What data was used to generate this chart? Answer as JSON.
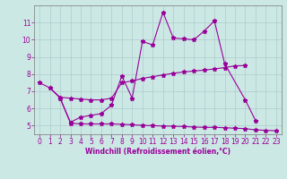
{
  "xlabel": "Windchill (Refroidissement éolien,°C)",
  "background_color": "#cce8e4",
  "grid_color": "#aacccc",
  "line_color": "#990099",
  "xlim": [
    -0.5,
    23.5
  ],
  "ylim": [
    4.5,
    12.0
  ],
  "yticks": [
    5,
    6,
    7,
    8,
    9,
    10,
    11
  ],
  "xticks": [
    0,
    1,
    2,
    3,
    4,
    5,
    6,
    7,
    8,
    9,
    10,
    11,
    12,
    13,
    14,
    15,
    16,
    17,
    18,
    19,
    20,
    21,
    22,
    23
  ],
  "line1_x": [
    0,
    1,
    2,
    3,
    4,
    5,
    6,
    7,
    8,
    9,
    10,
    11,
    12,
    13,
    14,
    15,
    16,
    17,
    18,
    20,
    21
  ],
  "line1_y": [
    7.5,
    7.2,
    6.6,
    5.2,
    5.5,
    5.6,
    5.7,
    6.2,
    7.9,
    6.6,
    9.9,
    9.7,
    11.6,
    10.1,
    10.05,
    10.0,
    10.5,
    11.1,
    8.6,
    6.5,
    5.3
  ],
  "line2_x": [
    1,
    2,
    3,
    4,
    5,
    6,
    7,
    8,
    9,
    10,
    11,
    12,
    13,
    14,
    15,
    16,
    17,
    18,
    19,
    20
  ],
  "line2_y": [
    7.2,
    6.65,
    6.6,
    6.55,
    6.5,
    6.5,
    6.6,
    7.5,
    7.6,
    7.75,
    7.85,
    7.95,
    8.05,
    8.12,
    8.18,
    8.23,
    8.3,
    8.38,
    8.48,
    8.5
  ],
  "line3_x": [
    2,
    3,
    4,
    5,
    6,
    7,
    8,
    9,
    10,
    11,
    12,
    13,
    14,
    15,
    16,
    17,
    18,
    19,
    20,
    21,
    22,
    23
  ],
  "line3_y": [
    6.6,
    5.15,
    5.1,
    5.1,
    5.1,
    5.1,
    5.08,
    5.05,
    5.02,
    5.0,
    4.98,
    4.97,
    4.95,
    4.92,
    4.9,
    4.9,
    4.88,
    4.85,
    4.83,
    4.75,
    4.73,
    4.7
  ],
  "xlabel_fontsize": 5.5,
  "tick_fontsize": 5.5,
  "marker_size": 3.5,
  "linewidth": 0.8
}
